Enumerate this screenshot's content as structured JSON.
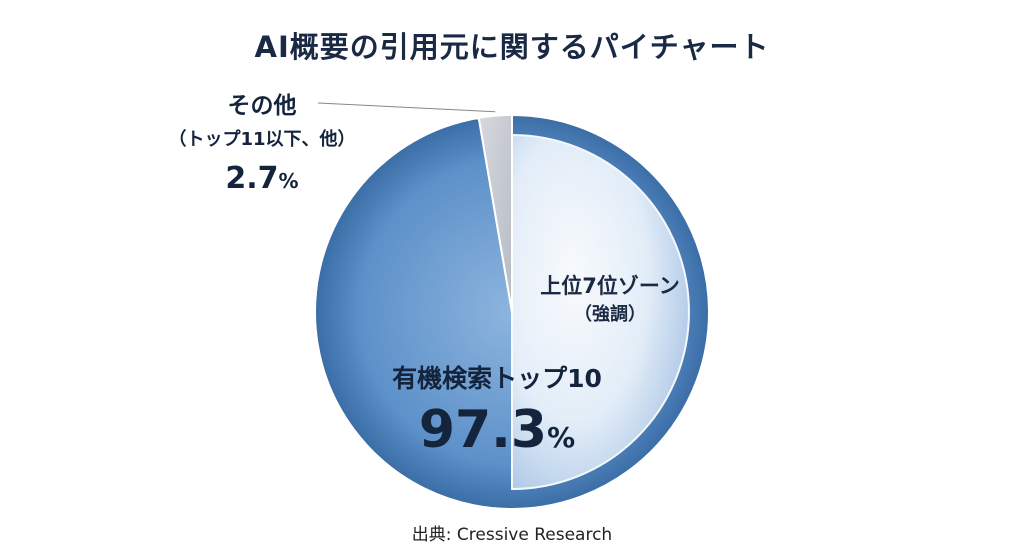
{
  "title": "AI概要の引用元に関するパイチャート",
  "source": "出典: Cressive Research",
  "colors": {
    "main_slice": "#5b8fc7",
    "main_slice_dark": "#2f5f9a",
    "highlight_zone": "#eaf2fb",
    "other_slice": "#c8ccd2",
    "text": "#1b2a44"
  },
  "chart_data": {
    "type": "pie",
    "title": "AI概要の引用元に関するパイチャート",
    "slices": [
      {
        "label": "有機検索トップ10",
        "value": 97.3,
        "value_text": "97.3",
        "unit": "%"
      },
      {
        "label_line1": "その他",
        "label_line2": "（トップ11以下、他）",
        "value": 2.7,
        "value_text": "2.7",
        "unit": "%"
      }
    ],
    "highlight": {
      "label_line1": "上位7位ゾーン",
      "label_line2": "（強調）"
    }
  }
}
